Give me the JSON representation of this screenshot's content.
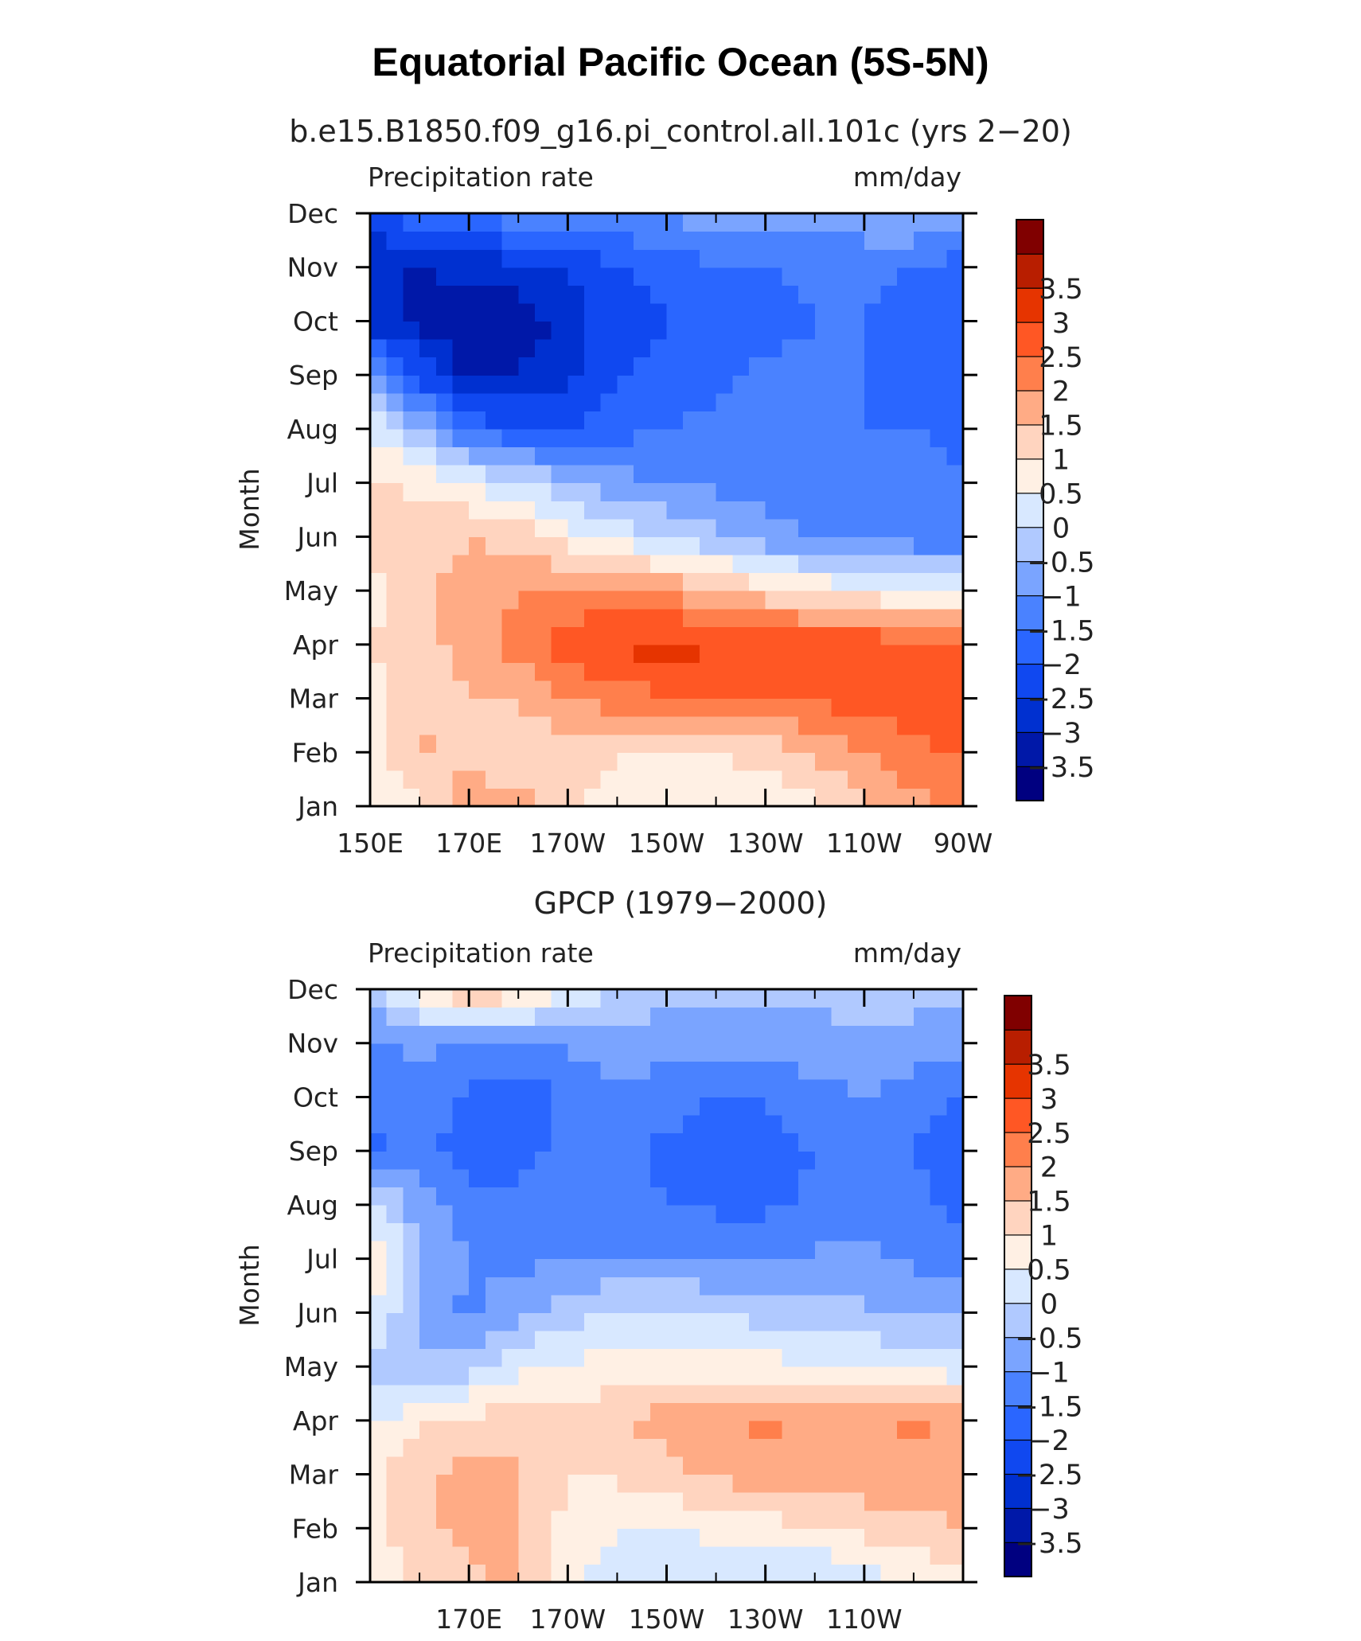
{
  "title": "Equatorial Pacific Ocean (5S-5N)",
  "colors": [
    "#000080",
    "#0018a8",
    "#0030d0",
    "#1048f0",
    "#2a66ff",
    "#4a82ff",
    "#7aa4ff",
    "#b0c9ff",
    "#d8e8ff",
    "#fff0e4",
    "#ffd4bf",
    "#ffab85",
    "#ff7f4c",
    "#ff5724",
    "#e63400",
    "#b81e00",
    "#800000"
  ],
  "chart_data": [
    {
      "type": "heatmap",
      "subtitle": "b.e15.B1850.f09_g16.pi_control.all.101c (yrs 2−20)",
      "left_label": "Precipitation rate",
      "right_label": "mm/day",
      "ylabel": "Month",
      "x": [
        150,
        160,
        170,
        180,
        190,
        200,
        210,
        220,
        230,
        240,
        250,
        260,
        270
      ],
      "x_tick_values": [
        150,
        170,
        190,
        210,
        230,
        250,
        270
      ],
      "x_tick_labels": [
        "150E",
        "170E",
        "170W",
        "150W",
        "130W",
        "110W",
        "90W"
      ],
      "y": [
        "Jan",
        "Feb",
        "Mar",
        "Apr",
        "May",
        "Jun",
        "Jul",
        "Aug",
        "Sep",
        "Oct",
        "Nov",
        "Dec"
      ],
      "levels": [
        -3.5,
        -3,
        -2.5,
        -2,
        -1.5,
        -1,
        -0.5,
        0,
        0.5,
        1,
        1.5,
        2,
        2.5,
        3,
        3.5
      ],
      "level_labels": [
        "−3.5",
        "−3",
        "−2.5",
        "−2",
        "−1.5",
        "−1",
        "−0.5",
        "0",
        "0.5",
        "1",
        "1.5",
        "2",
        "2.5",
        "3",
        "3.5"
      ],
      "z": [
        [
          0.4,
          0.9,
          1.8,
          1.7,
          1.2,
          0.7,
          0.6,
          0.5,
          0.6,
          0.9,
          1.4,
          1.8,
          2.2
        ],
        [
          0.6,
          1.6,
          1.4,
          1.0,
          1.3,
          1.0,
          0.9,
          1.0,
          1.2,
          1.6,
          2.0,
          2.4,
          2.6
        ],
        [
          0.8,
          1.2,
          1.5,
          1.6,
          2.0,
          2.3,
          2.4,
          2.4,
          2.5,
          2.6,
          2.7,
          2.8,
          2.9
        ],
        [
          1.0,
          1.3,
          1.7,
          2.2,
          2.7,
          3.1,
          3.2,
          3.1,
          3.1,
          3.0,
          2.9,
          2.8,
          2.8
        ],
        [
          0.7,
          1.4,
          1.8,
          1.9,
          2.2,
          2.1,
          1.9,
          1.6,
          1.2,
          0.9,
          0.7,
          0.5,
          0.3
        ],
        [
          1.6,
          1.2,
          1.5,
          1.3,
          0.7,
          0.3,
          0.0,
          -0.4,
          -0.8,
          -1.0,
          -1.2,
          -1.3,
          -1.3
        ],
        [
          1.2,
          0.8,
          0.5,
          0.1,
          -0.4,
          -0.8,
          -1.0,
          -1.1,
          -1.2,
          -1.3,
          -1.4,
          -1.4,
          -1.5
        ],
        [
          0.4,
          -0.4,
          -1.6,
          -2.0,
          -2.0,
          -1.7,
          -1.5,
          -1.4,
          -1.4,
          -1.5,
          -1.5,
          -1.5,
          -1.6
        ],
        [
          -0.5,
          -2.1,
          -3.2,
          -3.0,
          -2.6,
          -2.1,
          -1.8,
          -1.6,
          -1.4,
          -1.4,
          -1.5,
          -1.6,
          -1.8
        ],
        [
          -2.8,
          -3.1,
          -3.4,
          -3.3,
          -2.8,
          -2.2,
          -2.0,
          -1.9,
          -1.7,
          -1.5,
          -1.5,
          -1.7,
          -2.0
        ],
        [
          -3.0,
          -3.0,
          -2.9,
          -2.7,
          -2.4,
          -2.1,
          -1.8,
          -1.6,
          -1.5,
          -1.4,
          -1.4,
          -1.5,
          -1.7
        ],
        [
          -2.2,
          -1.5,
          -1.3,
          -1.2,
          -1.1,
          -1.0,
          -0.9,
          -0.8,
          -0.8,
          -0.8,
          -0.6,
          -0.5,
          -0.8
        ]
      ]
    },
    {
      "type": "heatmap",
      "subtitle": "GPCP (1979−2000)",
      "left_label": "Precipitation rate",
      "right_label": "mm/day",
      "ylabel": "Month",
      "x": [
        150,
        160,
        170,
        180,
        190,
        200,
        210,
        220,
        230,
        240,
        250,
        260,
        270
      ],
      "x_tick_values": [
        170,
        190,
        210,
        230,
        250
      ],
      "x_tick_labels": [
        "170E",
        "170W",
        "150W",
        "130W",
        "110W"
      ],
      "y": [
        "Jan",
        "Feb",
        "Mar",
        "Apr",
        "May",
        "Jun",
        "Jul",
        "Aug",
        "Sep",
        "Oct",
        "Nov",
        "Dec"
      ],
      "levels": [
        -3.5,
        -3,
        -2.5,
        -2,
        -1.5,
        -1,
        -0.5,
        0,
        0.5,
        1,
        1.5,
        2,
        2.5,
        3,
        3.5
      ],
      "level_labels": [
        "−3.5",
        "−3",
        "−2.5",
        "−2",
        "−1.5",
        "−1",
        "−0.5",
        "0",
        "0.5",
        "1",
        "1.5",
        "2",
        "2.5",
        "3",
        "3.5"
      ],
      "z": [
        [
          0.6,
          1.1,
          1.4,
          1.7,
          0.6,
          0.3,
          0.2,
          0.2,
          0.1,
          -0.1,
          0.2,
          0.5,
          0.8
        ],
        [
          0.9,
          1.3,
          1.7,
          1.5,
          0.8,
          0.5,
          0.5,
          0.6,
          0.8,
          1.0,
          1.2,
          1.3,
          1.5
        ],
        [
          0.8,
          1.4,
          1.7,
          1.6,
          1.0,
          1.1,
          1.4,
          1.6,
          1.8,
          1.9,
          1.8,
          1.9,
          1.8
        ],
        [
          0.4,
          0.9,
          1.2,
          1.3,
          1.1,
          1.4,
          1.7,
          1.9,
          2.1,
          1.9,
          1.7,
          2.1,
          1.8
        ],
        [
          -0.3,
          -0.4,
          -0.3,
          0.4,
          0.6,
          0.7,
          0.8,
          0.8,
          0.7,
          0.6,
          0.5,
          0.3,
          0.2
        ],
        [
          0.6,
          -0.6,
          -1.2,
          -0.7,
          -0.2,
          0.1,
          0.1,
          0.0,
          -0.2,
          -0.3,
          -0.4,
          -0.5,
          -0.6
        ],
        [
          0.9,
          -0.4,
          -1.0,
          -1.1,
          -1.0,
          -1.0,
          -1.0,
          -1.1,
          -1.0,
          -0.9,
          -0.9,
          -1.1,
          -1.2
        ],
        [
          0.5,
          -0.8,
          -1.3,
          -1.3,
          -1.2,
          -1.3,
          -1.5,
          -1.6,
          -1.6,
          -1.4,
          -1.2,
          -1.4,
          -1.6
        ],
        [
          -1.6,
          -1.2,
          -1.9,
          -1.8,
          -1.3,
          -1.3,
          -1.6,
          -1.7,
          -1.7,
          -1.5,
          -1.3,
          -1.5,
          -1.8
        ],
        [
          -1.4,
          -1.2,
          -1.6,
          -2.0,
          -1.4,
          -1.1,
          -1.3,
          -1.5,
          -1.5,
          -1.2,
          -1.0,
          -1.3,
          -1.6
        ],
        [
          -1.1,
          -0.9,
          -1.0,
          -1.0,
          -0.9,
          -0.8,
          -0.8,
          -0.8,
          -0.7,
          -0.7,
          -0.6,
          -0.7,
          -0.9
        ],
        [
          -0.4,
          0.9,
          1.8,
          1.2,
          0.5,
          0.0,
          -0.3,
          -0.4,
          -0.4,
          -0.4,
          -0.3,
          -0.3,
          -0.4
        ]
      ]
    }
  ]
}
